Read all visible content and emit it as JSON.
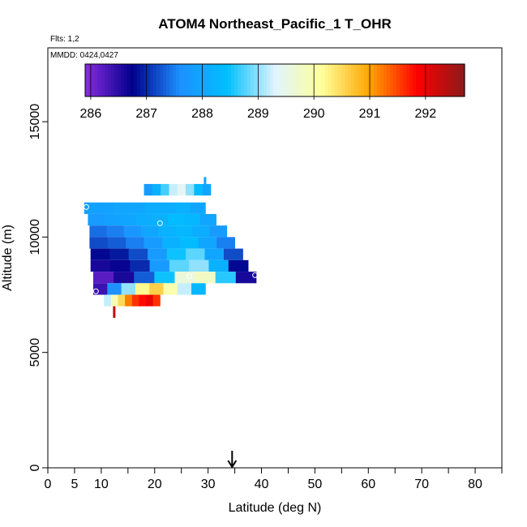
{
  "chart_data": {
    "type": "heatmap",
    "title": "ATOM4 Northeast_Pacific_1 T_OHR",
    "annotations": [
      "Flts: 1,2",
      "MMDD: 0424,0427"
    ],
    "xlabel": "Latitude (deg N)",
    "ylabel": "Altitude (m)",
    "xlim": [
      0,
      85
    ],
    "ylim": [
      0,
      18200
    ],
    "x_ticks": [
      0,
      5,
      10,
      20,
      30,
      40,
      50,
      60,
      70,
      80
    ],
    "x_minor_ticks": [
      15,
      25,
      35,
      45,
      55,
      65,
      75,
      85
    ],
    "y_ticks": [
      0,
      5000,
      10000,
      15000
    ],
    "colorbar": {
      "min": 285.9,
      "max": 292.7,
      "ticks": [
        286,
        287,
        288,
        289,
        290,
        291,
        292
      ],
      "colors": [
        "#8a2be2",
        "#00008b",
        "#1e90ff",
        "#00bfff",
        "#e0f4ff",
        "#ffff99",
        "#ffa500",
        "#ff0000",
        "#8b1a1a"
      ]
    },
    "bands": [
      {
        "alt_min": 11800,
        "alt_max": 12300,
        "lat_min": 18.0,
        "lat_max": 30.5,
        "values": [
          287.8,
          288.2,
          288.7,
          289.2,
          289.4,
          289.0,
          288.4,
          288.0
        ]
      },
      {
        "alt_min": 11000,
        "alt_max": 11500,
        "lat_min": 6.8,
        "lat_max": 29.5,
        "values": [
          287.9,
          287.9,
          288.0,
          288.0,
          288.1,
          288.1,
          288.2,
          288.0
        ]
      },
      {
        "alt_min": 10500,
        "alt_max": 11000,
        "lat_min": 7.5,
        "lat_max": 31.5,
        "values": [
          287.8,
          287.9,
          288.0,
          288.1,
          288.2,
          288.4,
          288.3,
          288.0
        ]
      },
      {
        "alt_min": 10000,
        "alt_max": 10500,
        "lat_min": 7.8,
        "lat_max": 33.5,
        "values": [
          287.4,
          287.5,
          287.7,
          288.0,
          288.2,
          288.3,
          288.1,
          287.8
        ]
      },
      {
        "alt_min": 9500,
        "alt_max": 10000,
        "lat_min": 7.8,
        "lat_max": 35.0,
        "values": [
          287.2,
          287.3,
          287.5,
          287.8,
          288.2,
          288.4,
          288.0,
          287.5
        ]
      },
      {
        "alt_min": 9000,
        "alt_max": 9500,
        "lat_min": 8.0,
        "lat_max": 36.5,
        "values": [
          286.8,
          286.9,
          287.2,
          287.8,
          288.5,
          288.8,
          288.0,
          287.2
        ]
      },
      {
        "alt_min": 8500,
        "alt_max": 9000,
        "lat_min": 8.0,
        "lat_max": 37.5,
        "values": [
          286.6,
          286.7,
          287.0,
          287.8,
          288.8,
          289.0,
          288.2,
          286.8
        ]
      },
      {
        "alt_min": 8000,
        "alt_max": 8500,
        "lat_min": 8.5,
        "lat_max": 39.0,
        "values": [
          286.2,
          286.6,
          287.3,
          288.5,
          289.6,
          289.8,
          288.6,
          286.6
        ]
      },
      {
        "alt_min": 7500,
        "alt_max": 8000,
        "lat_min": 8.5,
        "lat_max": 29.5,
        "values": [
          286.4,
          287.6,
          289.0,
          290.2,
          290.6,
          290.0,
          289.2,
          288.3
        ]
      },
      {
        "alt_min": 7000,
        "alt_max": 7500,
        "lat_min": 10.5,
        "lat_max": 21.0,
        "values": [
          289.2,
          289.9,
          290.5,
          291.2,
          291.6,
          291.8,
          292.0,
          291.6
        ]
      },
      {
        "alt_min": 6500,
        "alt_max": 7000,
        "lat_min": 12.2,
        "lat_max": 12.6,
        "values": [
          292.3
        ]
      },
      {
        "alt_min": 12300,
        "alt_max": 12600,
        "lat_min": 29.2,
        "lat_max": 29.6,
        "values": [
          287.9
        ]
      }
    ],
    "markers": [
      {
        "lat": 7.2,
        "alt": 11300
      },
      {
        "lat": 21.0,
        "alt": 10600
      },
      {
        "lat": 26.5,
        "alt": 8300
      },
      {
        "lat": 9.0,
        "alt": 7650
      },
      {
        "lat": 38.8,
        "alt": 8350
      }
    ],
    "arrow_lat": 34.5
  }
}
